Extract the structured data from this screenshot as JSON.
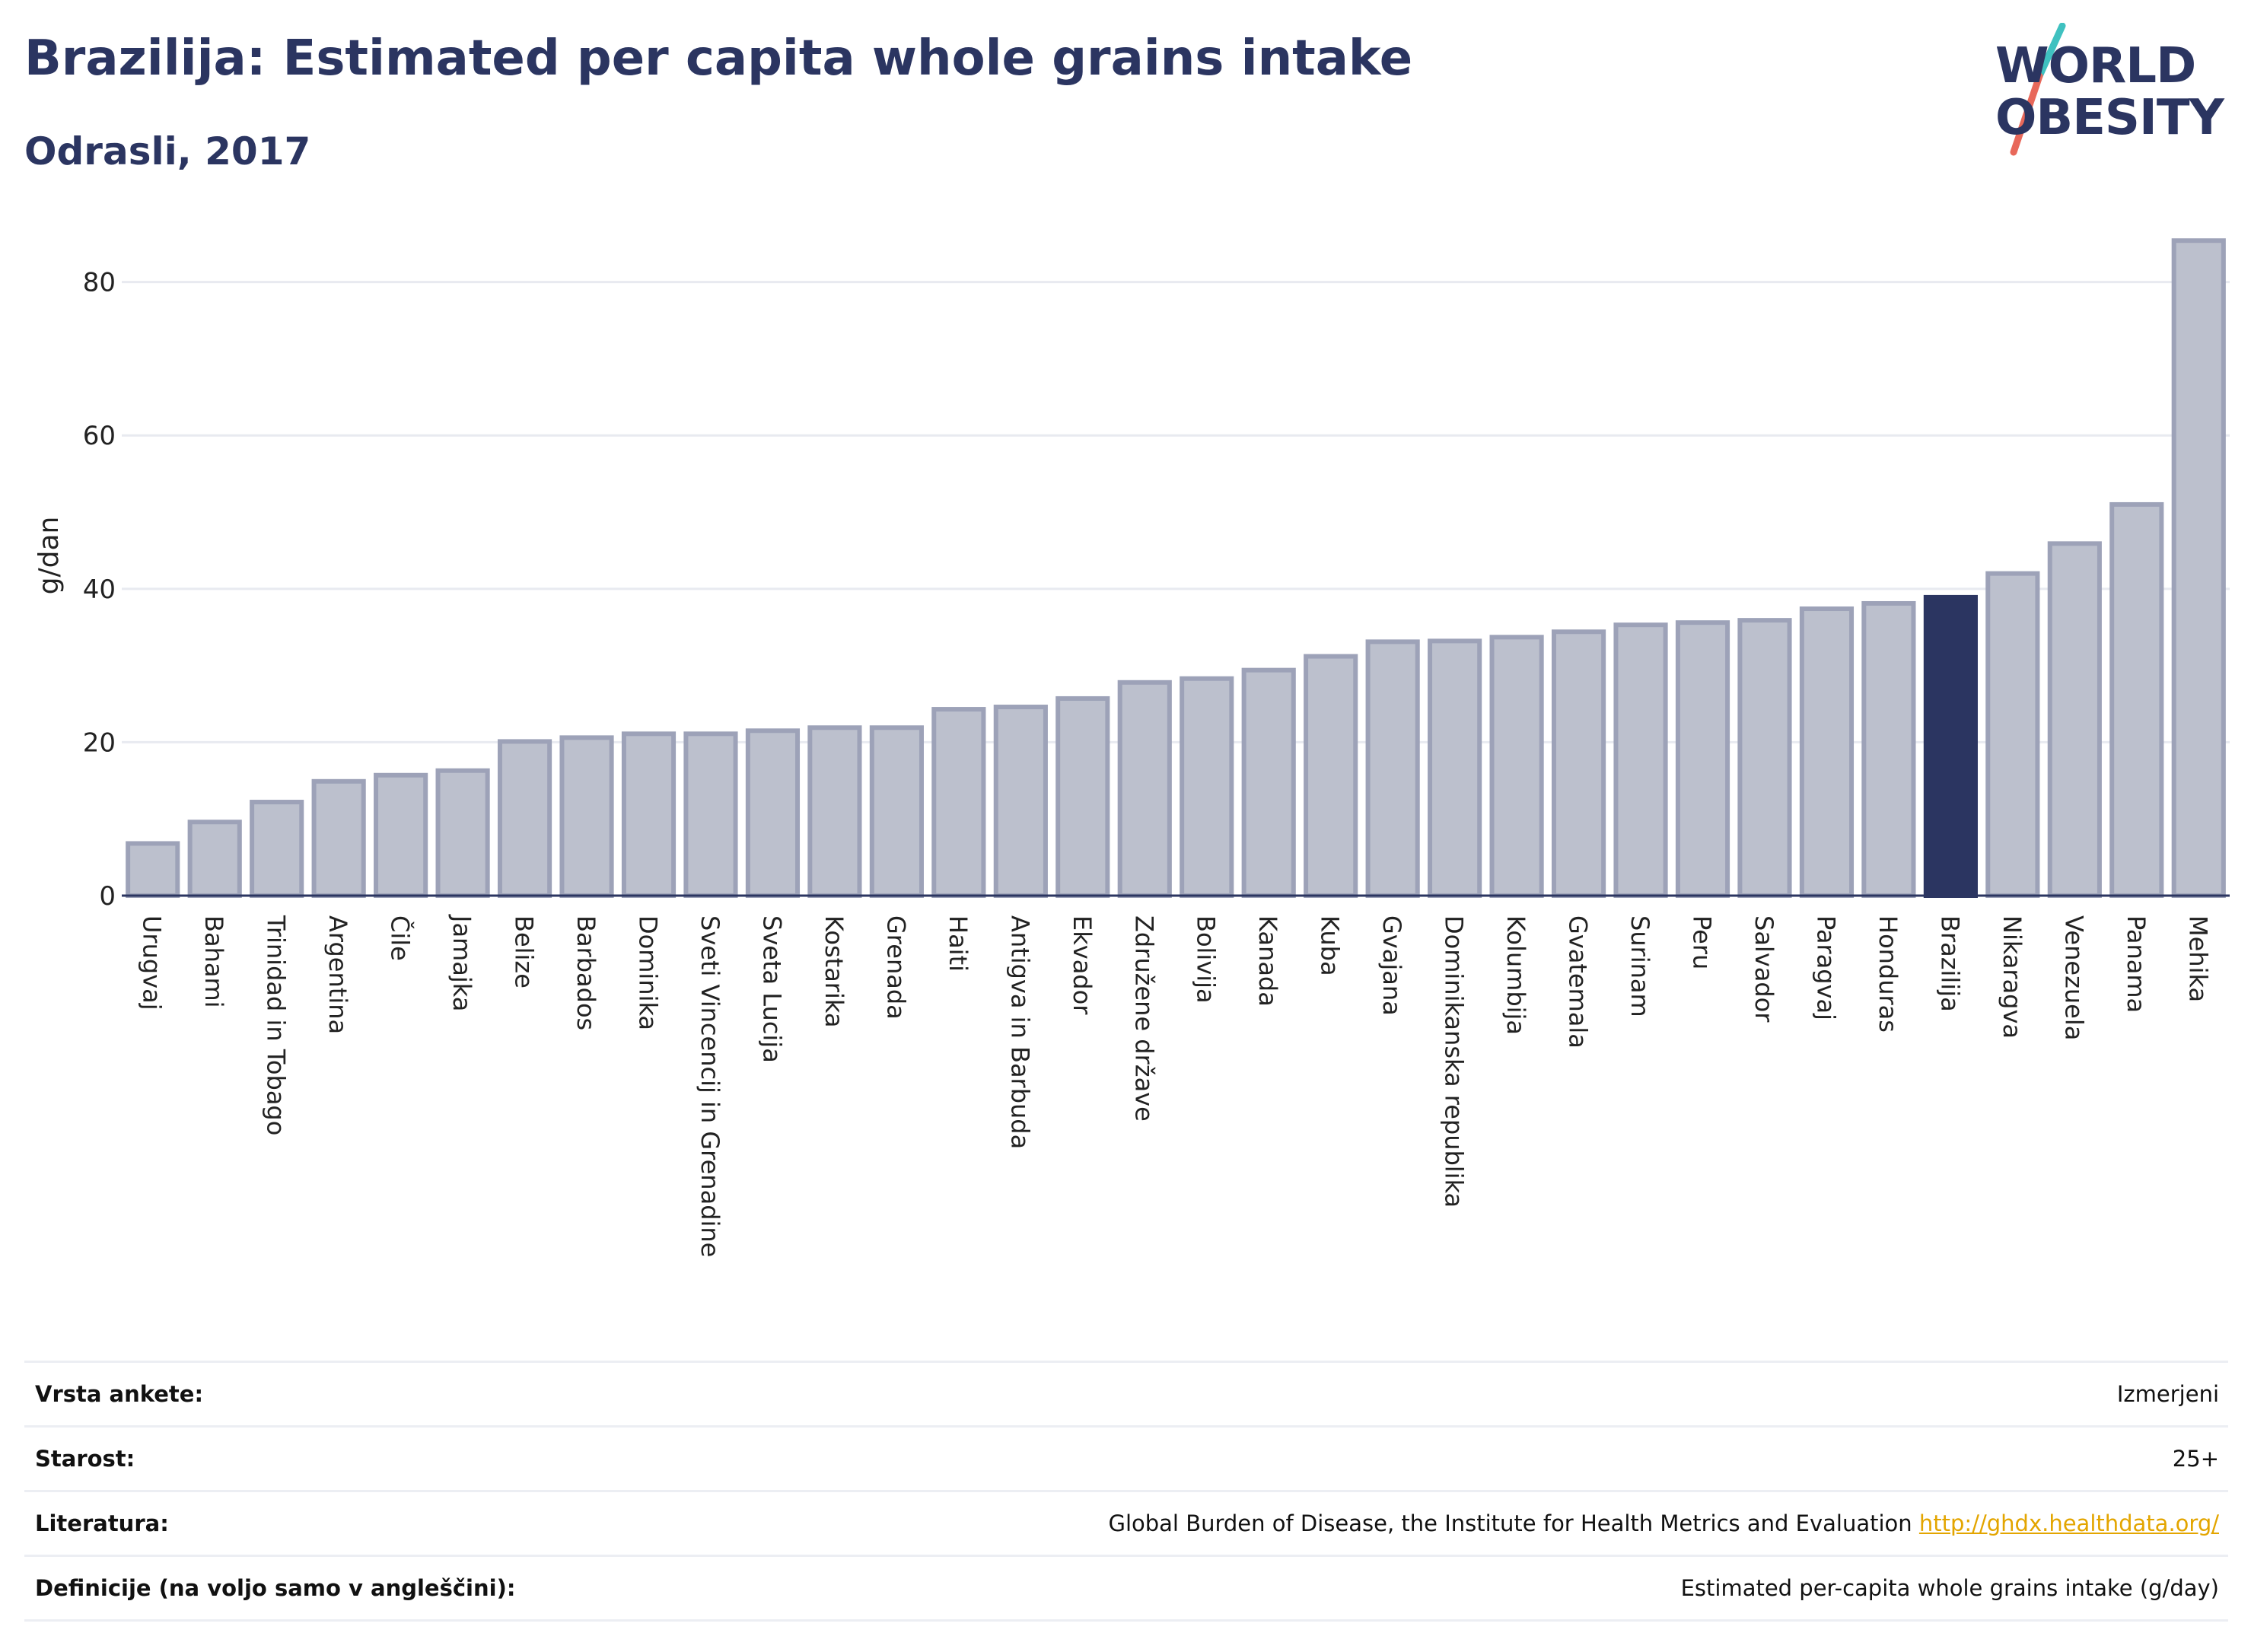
{
  "header": {
    "title": "Brazilija: Estimated per capita whole grains intake",
    "subtitle": "Odrasli, 2017"
  },
  "logo": {
    "line1": "WORLD",
    "line2": "OBESITY",
    "colors": {
      "text": "#2b3561",
      "slash_top": "#3fc1c0",
      "slash_bottom": "#e8685a"
    }
  },
  "chart_data": {
    "type": "bar",
    "ylabel": "g/dan",
    "ylim": [
      0,
      88
    ],
    "yticks": [
      0,
      20,
      40,
      60,
      80
    ],
    "grid": true,
    "highlight": "Brazilija",
    "colors": {
      "bar": "#bcc0cd",
      "bar_border": "#9da2b8",
      "highlight": "#2b3561",
      "grid": "#e8eaf0"
    },
    "categories": [
      "Urugvaj",
      "Bahami",
      "Trinidad in Tobago",
      "Argentina",
      "Čile",
      "Jamajka",
      "Belize",
      "Barbados",
      "Dominika",
      "Sveti Vincencij in Grenadine",
      "Sveta Lucija",
      "Kostarika",
      "Grenada",
      "Haiti",
      "Antigva in Barbuda",
      "Ekvador",
      "Združene države",
      "Bolivija",
      "Kanada",
      "Kuba",
      "Gvajana",
      "Dominikanska republika",
      "Kolumbija",
      "Gvatemala",
      "Surinam",
      "Peru",
      "Salvador",
      "Paragvaj",
      "Honduras",
      "Brazilija",
      "Nikaragva",
      "Venezuela",
      "Panama",
      "Mehika"
    ],
    "values": [
      6.8,
      9.6,
      12.2,
      14.9,
      15.7,
      16.3,
      20.1,
      20.6,
      21.1,
      21.1,
      21.5,
      21.9,
      21.9,
      24.3,
      24.6,
      25.7,
      27.8,
      28.3,
      29.4,
      31.2,
      33.1,
      33.2,
      33.7,
      34.4,
      35.3,
      35.6,
      35.9,
      37.4,
      38.1,
      38.9,
      42.0,
      45.9,
      51.0,
      85.4
    ]
  },
  "info": [
    {
      "key": "Vrsta ankete:",
      "value": "Izmerjeni"
    },
    {
      "key": "Starost:",
      "value": "25+"
    },
    {
      "key": "Literatura:",
      "value": "Global Burden of Disease, the Institute for Health Metrics and Evaluation",
      "link": "http://ghdx.healthdata.org/"
    },
    {
      "key": "Definicije (na voljo samo v angleščini):",
      "value": "Estimated per-capita whole grains intake (g/day)"
    }
  ]
}
